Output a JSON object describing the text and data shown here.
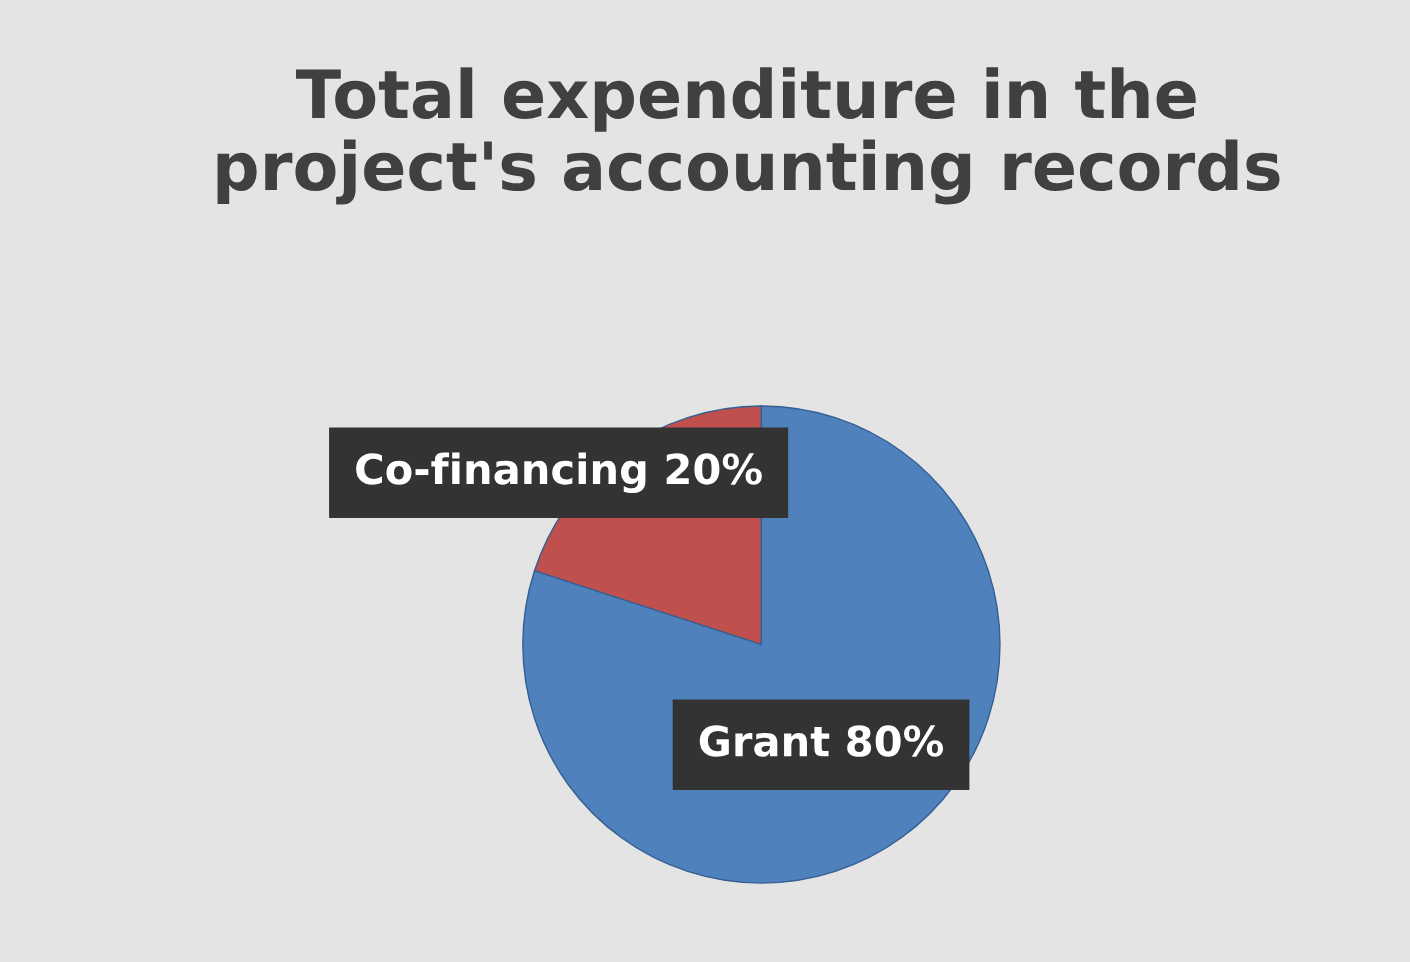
{
  "chart_data": {
    "type": "pie",
    "title": "Total expenditure in the\nproject's accounting records",
    "categories": [
      "Co-financing",
      "Grant"
    ],
    "values": [
      20,
      80
    ],
    "value_labels": [
      "20%",
      "80%"
    ],
    "colors": [
      "#c0504d",
      "#4f81bd"
    ]
  }
}
